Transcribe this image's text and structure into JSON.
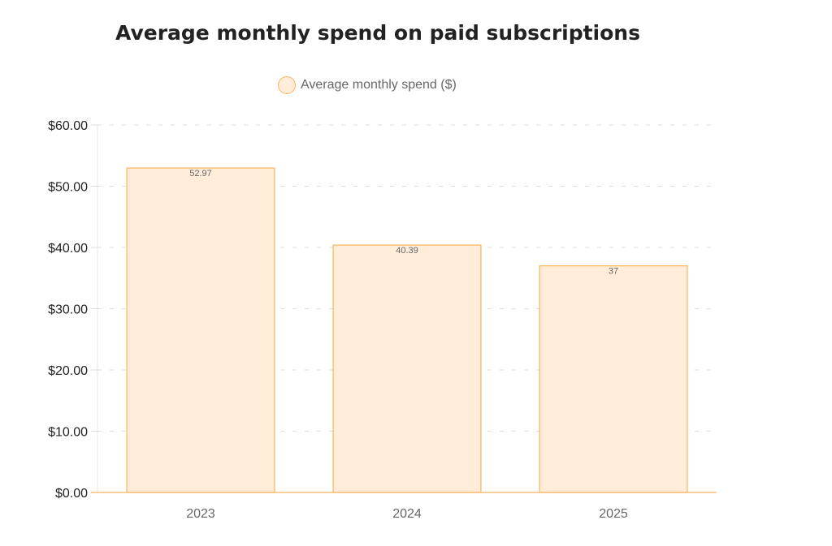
{
  "chart_data": {
    "type": "bar",
    "title": "Average monthly spend on paid subscriptions",
    "categories": [
      "2023",
      "2024",
      "2025"
    ],
    "series": [
      {
        "name": "Average monthly spend ($)",
        "values": [
          52.97,
          40.39,
          37
        ],
        "data_labels": [
          "52.97",
          "40.39",
          "37"
        ]
      }
    ],
    "ylim": [
      0,
      60
    ],
    "yticks": [
      "$0.00",
      "$10.00",
      "$20.00",
      "$30.00",
      "$40.00",
      "$50.00",
      "$60.00"
    ],
    "ytick_values": [
      0,
      10,
      20,
      30,
      40,
      50,
      60
    ],
    "grid": true,
    "legend": "top",
    "colors": {
      "fill": "#ffecd9",
      "stroke": "#fdb45c"
    }
  }
}
